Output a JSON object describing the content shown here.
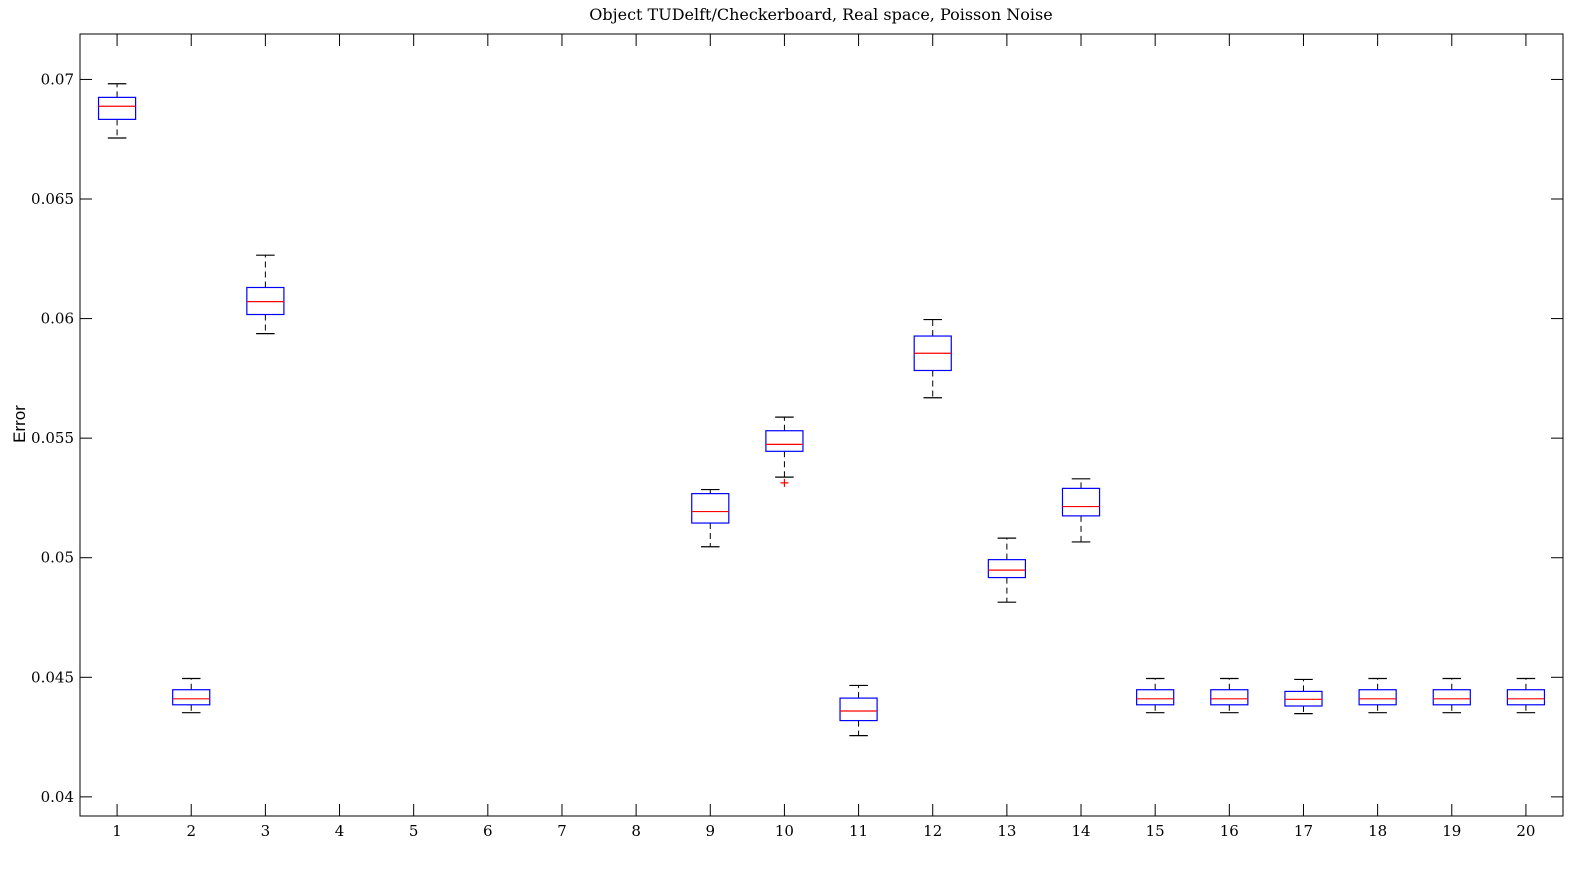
{
  "chart_data": {
    "type": "box",
    "title": "Object TUDelft/Checkerboard, Real space, Poisson Noise",
    "xlabel": "",
    "ylabel": "Error",
    "ylim": [
      0.0392,
      0.0719
    ],
    "xlim": [
      0.5,
      20.5
    ],
    "yticks": [
      0.04,
      0.045,
      0.05,
      0.055,
      0.06,
      0.065,
      0.07
    ],
    "ytick_labels": [
      "0.04",
      "0.045",
      "0.05",
      "0.055",
      "0.06",
      "0.065",
      "0.07"
    ],
    "xticks": [
      1,
      2,
      3,
      4,
      5,
      6,
      7,
      8,
      9,
      10,
      11,
      12,
      13,
      14,
      15,
      16,
      17,
      18,
      19,
      20
    ],
    "xtick_labels": [
      "1",
      "2",
      "3",
      "4",
      "5",
      "6",
      "7",
      "8",
      "9",
      "10",
      "11",
      "12",
      "13",
      "14",
      "15",
      "16",
      "17",
      "18",
      "19",
      "20"
    ],
    "colors": {
      "box": "#0000ff",
      "median": "#ff0000",
      "whisker": "#000000",
      "outlier": "#ff0000"
    },
    "boxes": [
      {
        "x": 1,
        "whisker_low": 0.06755,
        "q1": 0.06833,
        "median": 0.06888,
        "q3": 0.06925,
        "whisker_high": 0.06982
      },
      {
        "x": 2,
        "whisker_low": 0.04352,
        "q1": 0.04385,
        "median": 0.0441,
        "q3": 0.04448,
        "whisker_high": 0.04495
      },
      {
        "x": 3,
        "whisker_low": 0.05937,
        "q1": 0.06017,
        "median": 0.06071,
        "q3": 0.0613,
        "whisker_high": 0.06265
      },
      {
        "x": 9,
        "whisker_low": 0.05046,
        "q1": 0.05145,
        "median": 0.05193,
        "q3": 0.05268,
        "whisker_high": 0.05285
      },
      {
        "x": 10,
        "whisker_low": 0.05337,
        "q1": 0.05445,
        "median": 0.05474,
        "q3": 0.05531,
        "whisker_high": 0.05588,
        "outliers": [
          0.05313
        ]
      },
      {
        "x": 11,
        "whisker_low": 0.04256,
        "q1": 0.04319,
        "median": 0.04359,
        "q3": 0.04413,
        "whisker_high": 0.04466
      },
      {
        "x": 12,
        "whisker_low": 0.05669,
        "q1": 0.05783,
        "median": 0.05855,
        "q3": 0.05927,
        "whisker_high": 0.05996
      },
      {
        "x": 13,
        "whisker_low": 0.04814,
        "q1": 0.04917,
        "median": 0.04948,
        "q3": 0.04992,
        "whisker_high": 0.05082
      },
      {
        "x": 14,
        "whisker_low": 0.05066,
        "q1": 0.05175,
        "median": 0.05214,
        "q3": 0.0529,
        "whisker_high": 0.0533
      },
      {
        "x": 15,
        "whisker_low": 0.04352,
        "q1": 0.04385,
        "median": 0.0441,
        "q3": 0.04448,
        "whisker_high": 0.04495
      },
      {
        "x": 16,
        "whisker_low": 0.04352,
        "q1": 0.04385,
        "median": 0.0441,
        "q3": 0.04448,
        "whisker_high": 0.04495
      },
      {
        "x": 17,
        "whisker_low": 0.04348,
        "q1": 0.0438,
        "median": 0.04408,
        "q3": 0.04441,
        "whisker_high": 0.04491
      },
      {
        "x": 18,
        "whisker_low": 0.04352,
        "q1": 0.04385,
        "median": 0.0441,
        "q3": 0.04448,
        "whisker_high": 0.04495
      },
      {
        "x": 19,
        "whisker_low": 0.04352,
        "q1": 0.04385,
        "median": 0.0441,
        "q3": 0.04448,
        "whisker_high": 0.04495
      },
      {
        "x": 20,
        "whisker_low": 0.04352,
        "q1": 0.04385,
        "median": 0.0441,
        "q3": 0.04448,
        "whisker_high": 0.04495
      }
    ]
  }
}
